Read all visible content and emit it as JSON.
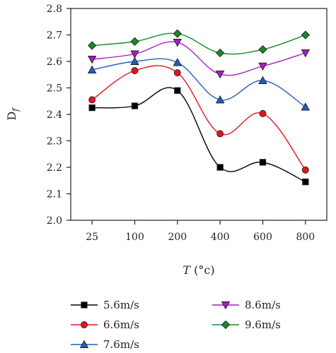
{
  "chart_data": {
    "type": "line",
    "categories": [
      "25",
      "100",
      "200",
      "400",
      "600",
      "800"
    ],
    "ylabel_main": "D",
    "ylabel_sub": "f",
    "xlabel_var": "T",
    "xlabel_unit": " (°c)",
    "ylim": [
      2.0,
      2.8
    ],
    "yticks": [
      "2.0",
      "2.1",
      "2.2",
      "2.3",
      "2.4",
      "2.5",
      "2.6",
      "2.7",
      "2.8"
    ],
    "grid": false,
    "legend_position": "bottom",
    "series": [
      {
        "name": "5.6m/s",
        "color": "#000000",
        "marker": "square",
        "values": [
          2.425,
          2.432,
          2.49,
          2.2,
          2.219,
          2.145
        ]
      },
      {
        "name": "6.6m/s",
        "color": "#e8141c",
        "marker": "circle",
        "values": [
          2.455,
          2.565,
          2.557,
          2.327,
          2.403,
          2.19
        ]
      },
      {
        "name": "7.6m/s",
        "color": "#1f5fbf",
        "marker": "triangle-up",
        "values": [
          2.568,
          2.6,
          2.596,
          2.455,
          2.528,
          2.428
        ]
      },
      {
        "name": "8.6m/s",
        "color": "#a020c0",
        "marker": "triangle-down",
        "values": [
          2.608,
          2.628,
          2.672,
          2.552,
          2.582,
          2.632
        ]
      },
      {
        "name": "9.6m/s",
        "color": "#1a8a2a",
        "marker": "diamond",
        "values": [
          2.66,
          2.675,
          2.705,
          2.632,
          2.645,
          2.7
        ]
      }
    ]
  }
}
